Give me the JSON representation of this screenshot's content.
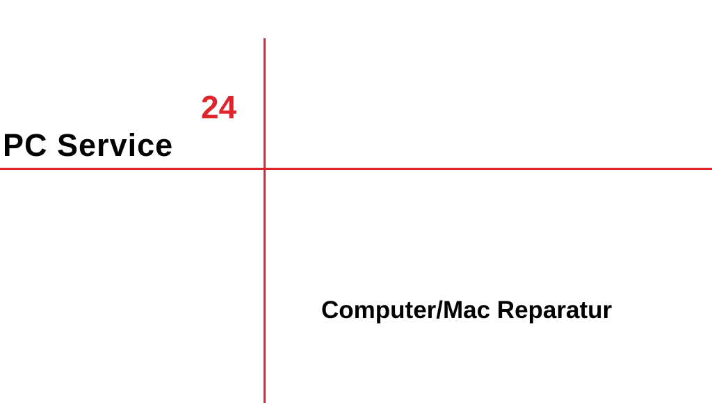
{
  "logo": {
    "brand": "PC Service",
    "number": "24",
    "tagline": "Computer/Mac Reparatur",
    "colors": {
      "accent": "#e0242c",
      "text": "#000000",
      "background": "#ffffff"
    }
  }
}
